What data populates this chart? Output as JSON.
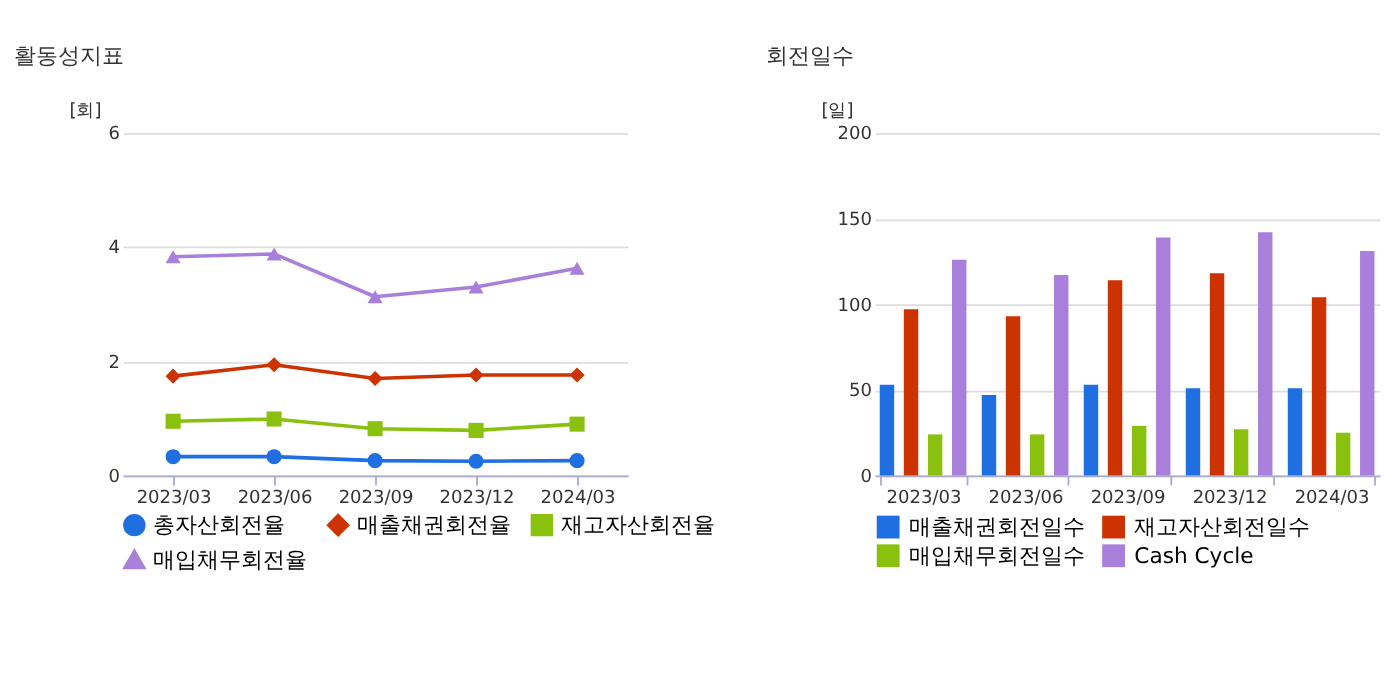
{
  "chart_data": [
    {
      "type": "line",
      "title": "활동성지표",
      "ylabel": "[회]",
      "categories": [
        "2023/03",
        "2023/06",
        "2023/09",
        "2023/12",
        "2024/03"
      ],
      "ylim": [
        0,
        6
      ],
      "yticks": [
        0,
        2,
        4,
        6
      ],
      "grid": "y",
      "legend": "bottom",
      "line_style": "solid",
      "series": [
        {
          "name": "총자산회전율",
          "color": "#1f6fe0",
          "marker": "circle",
          "values": [
            0.33,
            0.33,
            0.26,
            0.25,
            0.26
          ]
        },
        {
          "name": "매출채권회전율",
          "color": "#cc3300",
          "marker": "diamond",
          "values": [
            1.74,
            1.94,
            1.7,
            1.76,
            1.76
          ]
        },
        {
          "name": "재고자산회전율",
          "color": "#8ac10f",
          "marker": "square",
          "values": [
            0.95,
            0.99,
            0.82,
            0.79,
            0.9
          ]
        },
        {
          "name": "매입채무회전율",
          "color": "#a97fdc",
          "marker": "triangle",
          "values": [
            3.83,
            3.88,
            3.13,
            3.3,
            3.63
          ]
        }
      ]
    },
    {
      "type": "bar",
      "title": "회전일수",
      "ylabel": "[일]",
      "categories": [
        "2023/03",
        "2023/06",
        "2023/09",
        "2023/12",
        "2024/03"
      ],
      "ylim": [
        0,
        200
      ],
      "yticks": [
        0,
        50,
        100,
        150,
        200
      ],
      "grid": "y",
      "legend": "bottom",
      "series": [
        {
          "name": "매출채권회전일수",
          "color": "#1f6fe0",
          "values": [
            53,
            47,
            53,
            51,
            51
          ]
        },
        {
          "name": "재고자산회전일수",
          "color": "#cc3300",
          "values": [
            97,
            93,
            114,
            118,
            104
          ]
        },
        {
          "name": "매입채무회전일수",
          "color": "#8ac10f",
          "values": [
            24,
            24,
            29,
            27,
            25
          ]
        },
        {
          "name": "Cash Cycle",
          "color": "#a97fdc",
          "values": [
            126,
            117,
            139,
            142,
            131
          ]
        }
      ]
    }
  ]
}
